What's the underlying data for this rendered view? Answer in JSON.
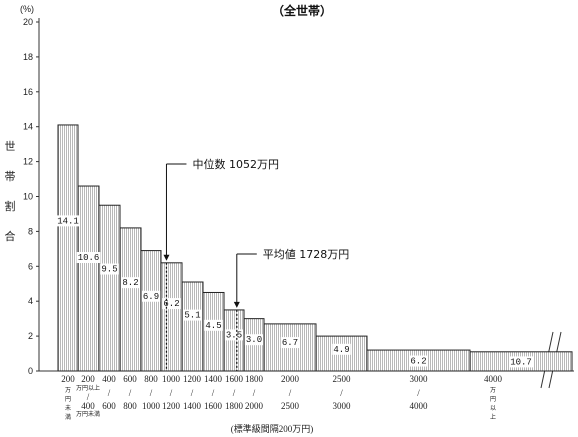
{
  "chart_data": {
    "type": "bar",
    "title": "（全世帯）",
    "ylabel": "世帯割合",
    "yunit": "(%)",
    "xlabel": "(標準級間隔200万円)",
    "ylim": [
      0,
      20
    ],
    "yticks": [
      0,
      2,
      4,
      6,
      8,
      10,
      12,
      14,
      16,
      18,
      20
    ],
    "bars": [
      {
        "value": 14.1,
        "label": "14.1",
        "cat_top": "200",
        "cat_bottom": "万円未満",
        "x_start": 0,
        "x_end": 200
      },
      {
        "value": 10.6,
        "label": "10.6",
        "cat_top": "200",
        "cat_small": "万円以上",
        "cat_mid": "400",
        "cat_bottom": "万円未満",
        "x_start": 200,
        "x_end": 400
      },
      {
        "value": 9.5,
        "label": "9.5",
        "cat_top": "400",
        "cat_bottom": "600",
        "x_start": 400,
        "x_end": 600
      },
      {
        "value": 8.2,
        "label": "8.2",
        "cat_top": "600",
        "cat_bottom": "800",
        "x_start": 600,
        "x_end": 800
      },
      {
        "value": 6.9,
        "label": "6.9",
        "cat_top": "800",
        "cat_bottom": "1000",
        "x_start": 800,
        "x_end": 1000
      },
      {
        "value": 6.2,
        "label": "6.2",
        "cat_top": "1000",
        "cat_bottom": "1200",
        "x_start": 1000,
        "x_end": 1200
      },
      {
        "value": 5.1,
        "label": "5.1",
        "cat_top": "1200",
        "cat_bottom": "1400",
        "x_start": 1200,
        "x_end": 1400
      },
      {
        "value": 4.5,
        "label": "4.5",
        "cat_top": "1400",
        "cat_bottom": "1600",
        "x_start": 1400,
        "x_end": 1600
      },
      {
        "value": 3.5,
        "label": "3.5",
        "cat_top": "1600",
        "cat_bottom": "1800",
        "x_start": 1600,
        "x_end": 1800
      },
      {
        "value": 3.0,
        "label": "3.0",
        "cat_top": "1800",
        "cat_bottom": "2000",
        "x_start": 1800,
        "x_end": 2000
      },
      {
        "value": 2.7,
        "label": "6.7",
        "cat_top": "2000",
        "cat_bottom": "2500",
        "x_start": 2000,
        "x_end": 2500
      },
      {
        "value": 2.0,
        "label": "4.9",
        "cat_top": "2500",
        "cat_bottom": "3000",
        "x_start": 2500,
        "x_end": 3000
      },
      {
        "value": 1.2,
        "label": "6.2",
        "cat_top": "3000",
        "cat_bottom": "4000",
        "x_start": 3000,
        "x_end": 4000
      },
      {
        "value": 1.1,
        "label": "10.7",
        "cat_top": "4000",
        "cat_bottom": "万円以上",
        "x_start": 4000,
        "x_end": null
      }
    ],
    "annotations": [
      {
        "text": "中位数 1052万円",
        "value": 1052,
        "bar_index": 5
      },
      {
        "text": "平均値 1728万円",
        "value": 1728,
        "bar_index": 8
      }
    ]
  }
}
